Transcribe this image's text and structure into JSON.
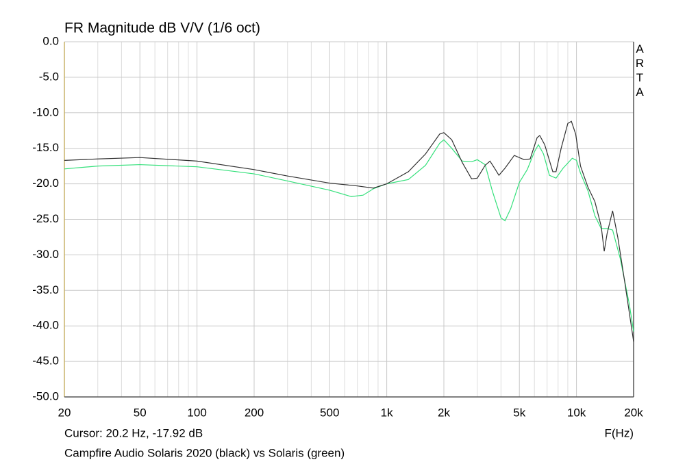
{
  "chart_data": {
    "type": "line",
    "title": "FR Magnitude dB V/V (1/6 oct)",
    "watermark": "ARTA",
    "cursor": "Cursor: 20.2 Hz, -17.92 dB",
    "x_label": "F(Hz)",
    "caption": "Campfire Audio Solaris 2020 (black) vs Solaris (green)",
    "x_log": true,
    "grid": true,
    "xlim": [
      20,
      20000
    ],
    "ylim": [
      -50,
      0
    ],
    "xticks": [
      20,
      50,
      100,
      200,
      500,
      {
        "value": 1000,
        "label": "1k"
      },
      {
        "value": 2000,
        "label": "2k"
      },
      {
        "value": 5000,
        "label": "5k"
      },
      {
        "value": 10000,
        "label": "10k"
      },
      {
        "value": 20000,
        "label": "20k"
      }
    ],
    "minor_xticks": [
      30,
      40,
      60,
      70,
      80,
      90,
      300,
      400,
      600,
      700,
      800,
      900,
      3000,
      4000,
      6000,
      7000,
      8000,
      9000
    ],
    "yticks": [
      {
        "value": 0,
        "label": "0.0"
      },
      {
        "value": -5,
        "label": "-5.0"
      },
      {
        "value": -10,
        "label": "-10.0"
      },
      {
        "value": -15,
        "label": "-15.0"
      },
      {
        "value": -20,
        "label": "-20.0"
      },
      {
        "value": -25,
        "label": "-25.0"
      },
      {
        "value": -30,
        "label": "-30.0"
      },
      {
        "value": -35,
        "label": "-35.0"
      },
      {
        "value": -40,
        "label": "-40.0"
      },
      {
        "value": -45,
        "label": "-45.0"
      },
      {
        "value": -50,
        "label": "-50.0"
      }
    ],
    "series": [
      {
        "color": "#303030",
        "x": [
          20,
          30,
          50,
          100,
          200,
          300,
          500,
          700,
          850,
          1000,
          1300,
          1600,
          1900,
          2000,
          2200,
          2500,
          2800,
          3000,
          3300,
          3500,
          3700,
          3900,
          4200,
          4700,
          5300,
          5700,
          6200,
          6400,
          6800,
          7500,
          7800,
          8300,
          9000,
          9400,
          9900,
          10500,
          11500,
          12500,
          13500,
          14000,
          14500,
          15500,
          16500,
          18000,
          20000
        ],
        "values": [
          -16.7,
          -16.5,
          -16.3,
          -16.8,
          -18.0,
          -18.9,
          -19.9,
          -20.3,
          -20.6,
          -20.0,
          -18.3,
          -15.8,
          -13.0,
          -12.8,
          -13.8,
          -17.0,
          -19.3,
          -19.2,
          -17.4,
          -16.8,
          -17.8,
          -18.8,
          -17.8,
          -16.0,
          -16.6,
          -16.5,
          -13.5,
          -13.2,
          -14.5,
          -18.3,
          -18.3,
          -15.0,
          -11.5,
          -11.2,
          -13.0,
          -17.5,
          -20.5,
          -22.5,
          -26.0,
          -29.5,
          -27.0,
          -23.8,
          -27.5,
          -34.0,
          -42.2
        ]
      },
      {
        "color": "#33e07a",
        "x": [
          20,
          30,
          50,
          100,
          200,
          300,
          500,
          650,
          750,
          850,
          1000,
          1300,
          1600,
          1900,
          2000,
          2200,
          2500,
          2800,
          3000,
          3300,
          3600,
          4000,
          4200,
          4500,
          5000,
          5500,
          6000,
          6300,
          6700,
          7200,
          7800,
          8500,
          9500,
          10000,
          10500,
          11500,
          12500,
          13500,
          14500,
          15500,
          17000,
          19000,
          20000
        ],
        "values": [
          -17.9,
          -17.5,
          -17.3,
          -17.6,
          -18.6,
          -19.6,
          -20.9,
          -21.8,
          -21.6,
          -20.7,
          -20.0,
          -19.4,
          -17.4,
          -14.3,
          -13.8,
          -15.0,
          -16.8,
          -16.9,
          -16.6,
          -17.3,
          -21.0,
          -24.8,
          -25.2,
          -23.5,
          -19.8,
          -18.0,
          -15.5,
          -14.5,
          -15.8,
          -18.8,
          -19.2,
          -17.8,
          -16.4,
          -16.7,
          -18.5,
          -21.0,
          -24.5,
          -26.3,
          -26.3,
          -26.5,
          -30.5,
          -37.0,
          -40.8
        ]
      }
    ]
  }
}
